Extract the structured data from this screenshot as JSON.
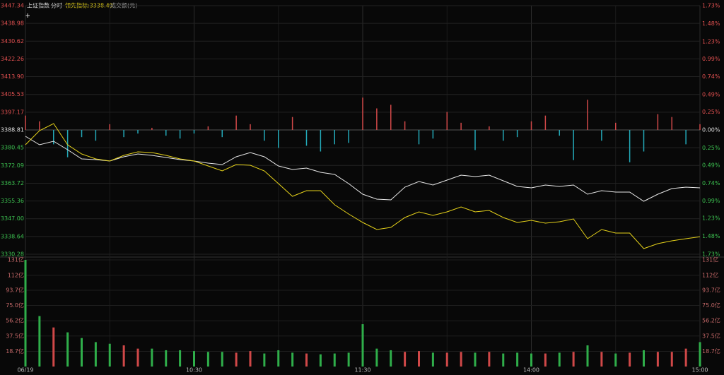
{
  "header": {
    "name": "上证指数",
    "mode": "分时",
    "indicator": "领先指标:3338.49",
    "volume_label": "成交额(元)"
  },
  "chart_data": [
    {
      "type": "line",
      "grid": true,
      "categories": [
        "06/19",
        null,
        null,
        null,
        null,
        null,
        null,
        null,
        null,
        null,
        null,
        null,
        "10:30",
        null,
        null,
        null,
        null,
        null,
        null,
        null,
        null,
        null,
        null,
        null,
        "11:30",
        null,
        null,
        null,
        null,
        null,
        null,
        null,
        null,
        null,
        null,
        null,
        "14:00",
        null,
        null,
        null,
        null,
        null,
        null,
        null,
        null,
        null,
        null,
        null,
        "15:00"
      ],
      "ylim": [
        3330.28,
        3447.34
      ],
      "yticks": [
        3447.34,
        3438.98,
        3430.62,
        3422.26,
        {
          "value": 3413.9,
          "label": "3413.90"
        },
        3405.53,
        3397.17,
        3388.81,
        3380.45,
        3372.09,
        3363.72,
        3355.36,
        {
          "value": 3347,
          "label": "3347.00"
        },
        3338.64,
        3330.28
      ],
      "y2lim": [
        -1.73,
        1.73
      ],
      "y2ticks": [
        {
          "value": 1.73,
          "label": "1.73%"
        },
        {
          "value": 1.48,
          "label": "1.48%"
        },
        {
          "value": 1.23,
          "label": "1.23%"
        },
        {
          "value": 0.99,
          "label": "0.99%"
        },
        {
          "value": 0.74,
          "label": "0.74%"
        },
        {
          "value": 0.49,
          "label": "0.49%"
        },
        {
          "value": 0.25,
          "label": "0.25%"
        },
        {
          "value": 0,
          "label": "0.00%"
        },
        {
          "value": -0.25,
          "label": "0.25%"
        },
        {
          "value": -0.49,
          "label": "0.49%"
        },
        {
          "value": -0.74,
          "label": "0.74%"
        },
        {
          "value": -0.99,
          "label": "0.99%"
        },
        {
          "value": -1.23,
          "label": "1.23%"
        },
        {
          "value": -1.48,
          "label": "1.48%"
        },
        {
          "value": -1.73,
          "label": "1.73%"
        }
      ],
      "series": [
        {
          "type": "bar",
          "axis": "y2",
          "color": "#d04848",
          "down_color": "#23a9b8",
          "values": [
            0.2,
            0.12,
            -0.2,
            -0.38,
            -0.1,
            -0.15,
            0.08,
            -0.1,
            -0.05,
            0.03,
            -0.08,
            -0.12,
            -0.05,
            0.05,
            -0.1,
            0.2,
            0.08,
            -0.15,
            -0.25,
            0.18,
            -0.22,
            -0.3,
            -0.2,
            -0.18,
            0.45,
            0.3,
            0.35,
            0.12,
            -0.2,
            -0.12,
            0.25,
            0.1,
            -0.28,
            0.05,
            -0.15,
            -0.1,
            0.12,
            0.2,
            -0.08,
            -0.42,
            0.42,
            -0.15,
            0.1,
            -0.45,
            -0.3,
            0.22,
            0.18,
            -0.2,
            0.08
          ]
        },
        {
          "type": "line",
          "color": "#e8e8e8",
          "values": [
            3385.82,
            3381.83,
            3383.49,
            3379.5,
            3375.18,
            3374.84,
            3374.18,
            3376.17,
            3377.51,
            3376.84,
            3375.84,
            3374.84,
            3374.18,
            3373.18,
            3372.51,
            3376.17,
            3378.17,
            3376.17,
            3371.85,
            3370.19,
            3370.85,
            3368.86,
            3367.86,
            3363.54,
            3358.55,
            3356.22,
            3355.89,
            3361.87,
            3364.53,
            3362.87,
            3365.2,
            3367.53,
            3366.86,
            3367.53,
            3364.87,
            3362.21,
            3361.54,
            3362.87,
            3362.21,
            3362.87,
            3358.55,
            3360.21,
            3359.55,
            3359.55,
            3355.22,
            3358.55,
            3361.21,
            3361.87,
            3361.54
          ]
        },
        {
          "type": "line",
          "color": "#e6d21a",
          "values": [
            3381.83,
            3388.48,
            3391.8,
            3381.83,
            3377.51,
            3375.18,
            3374.18,
            3376.84,
            3378.5,
            3378.17,
            3376.84,
            3375.18,
            3374.18,
            3371.85,
            3369.52,
            3372.51,
            3372.18,
            3369.52,
            3363.54,
            3357.55,
            3360.21,
            3360.21,
            3353.56,
            3349.24,
            3345.25,
            3341.92,
            3342.92,
            3347.57,
            3350.23,
            3348.57,
            3350.23,
            3352.56,
            3350.23,
            3350.9,
            3347.57,
            3345.25,
            3346.24,
            3344.91,
            3345.58,
            3346.91,
            3337.6,
            3341.92,
            3340.26,
            3340.26,
            3332.94,
            3335.27,
            3336.6,
            3337.6,
            3338.49
          ]
        }
      ]
    },
    {
      "type": "bar",
      "up_color": "#d04848",
      "down_color": "#2fae4a",
      "ylim": [
        0,
        131
      ],
      "yticks": [
        {
          "value": 131,
          "label": "131亿"
        },
        {
          "value": 112,
          "label": "112亿"
        },
        {
          "value": 93.7,
          "label": "93.7亿"
        },
        {
          "value": 75,
          "label": "75.0亿"
        },
        {
          "value": 56.2,
          "label": "56.2亿"
        },
        {
          "value": 37.5,
          "label": "37.5亿"
        },
        {
          "value": 18.7,
          "label": "18.7亿"
        }
      ],
      "values": [
        131,
        62,
        48,
        42,
        35,
        30,
        28,
        26,
        22,
        22,
        20,
        20,
        19,
        18,
        18,
        17,
        19,
        16,
        20,
        17,
        16,
        15,
        16,
        17,
        52,
        22,
        20,
        18,
        19,
        17,
        17,
        18,
        17,
        18,
        16,
        17,
        16,
        16,
        17,
        18,
        26,
        18,
        16,
        17,
        20,
        18,
        18,
        22,
        30
      ]
    }
  ]
}
